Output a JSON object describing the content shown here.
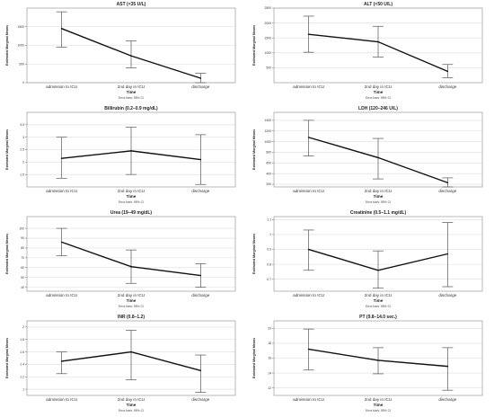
{
  "chart_data": [
    {
      "type": "line",
      "title": "AST (<35 U/L)",
      "xlabel": "Time",
      "ylabel": "Estimated Marginal Means",
      "x": [
        "admission to ICU",
        "2nd day in ICU",
        "discharge"
      ],
      "values": [
        1450,
        720,
        120
      ],
      "error_low": [
        950,
        400,
        0
      ],
      "error_high": [
        1900,
        1120,
        250
      ],
      "yticks": [
        0,
        500,
        1000,
        1500
      ],
      "ylim": [
        0,
        2000
      ],
      "error_note": "Error bars: 95% CI",
      "grid": true
    },
    {
      "type": "line",
      "title": "ALT (<50 U/L)",
      "xlabel": "Time",
      "ylabel": "Estimated Marginal Means",
      "x": [
        "admission to ICU",
        "2nd day in ICU",
        "discharge"
      ],
      "values": [
        1620,
        1370,
        380
      ],
      "error_low": [
        1020,
        860,
        170
      ],
      "error_high": [
        2230,
        1890,
        610
      ],
      "yticks": [
        500,
        1000,
        1500,
        2000,
        2500
      ],
      "ylim": [
        0,
        2500
      ],
      "error_note": "Error bars: 95% CI",
      "grid": true
    },
    {
      "type": "line",
      "title": "Billirubin (0.2–0.9 mg/dL)",
      "xlabel": "Time",
      "ylabel": "Estimated Marginal Means",
      "x": [
        "admission to ICU",
        "2nd day in ICU",
        "discharge"
      ],
      "values": [
        2.15,
        2.45,
        2.1
      ],
      "error_low": [
        1.35,
        1.5,
        1.1
      ],
      "error_high": [
        3.0,
        3.4,
        3.1
      ],
      "yticks": [
        1.5,
        2.0,
        2.5,
        3.0,
        3.5
      ],
      "ylim": [
        1.0,
        4.0
      ],
      "error_note": "Error bars: 95% CI",
      "grid": true
    },
    {
      "type": "line",
      "title": "LDH (120–246 U/L)",
      "xlabel": "Time",
      "ylabel": "Estimated Marginal Means",
      "x": [
        "admission to ICU",
        "2nd day in ICU",
        "discharge"
      ],
      "values": [
        1080,
        700,
        230
      ],
      "error_low": [
        730,
        300,
        150
      ],
      "error_high": [
        1400,
        1060,
        320
      ],
      "yticks": [
        200,
        400,
        600,
        800,
        1000,
        1200,
        1400
      ],
      "ylim": [
        150,
        1550
      ],
      "error_note": "Error bars: 95% CI",
      "grid": true
    },
    {
      "type": "line",
      "title": "Urea (19–49 mg/dL)",
      "xlabel": "Time",
      "ylabel": "Estimated Marginal Means",
      "x": [
        "admission to ICU",
        "2nd day in ICU",
        "discharge"
      ],
      "values": [
        86,
        61,
        52
      ],
      "error_low": [
        72,
        44,
        40
      ],
      "error_high": [
        100,
        78,
        64
      ],
      "yticks": [
        40,
        50,
        60,
        70,
        80,
        90,
        100
      ],
      "ylim": [
        36,
        112
      ],
      "error_note": "Error bars: 95% CI",
      "grid": true
    },
    {
      "type": "line",
      "title": "Creatinine (0.5–1.1 mg/dL)",
      "xlabel": "Time",
      "ylabel": "Estimated Marginal Means",
      "x": [
        "admission to ICU",
        "2nd day in ICU",
        "discharge"
      ],
      "values": [
        0.9,
        0.76,
        0.87
      ],
      "error_low": [
        0.76,
        0.64,
        0.65
      ],
      "error_high": [
        1.03,
        0.89,
        1.08
      ],
      "yticks": [
        0.7,
        0.8,
        0.9,
        1.0,
        1.1
      ],
      "ylim": [
        0.62,
        1.12
      ],
      "error_note": "Error bars: 95% CI",
      "grid": true
    },
    {
      "type": "line",
      "title": "INR (0.8–1.2)",
      "xlabel": "Time",
      "ylabel": "Estimated Marginal Means",
      "x": [
        "admission to ICU",
        "2nd day in ICU",
        "discharge"
      ],
      "values": [
        1.45,
        1.6,
        1.3
      ],
      "error_low": [
        1.25,
        1.15,
        0.95
      ],
      "error_high": [
        1.6,
        1.95,
        1.55
      ],
      "yticks": [
        1.0,
        1.2,
        1.4,
        1.6,
        1.8,
        2.0
      ],
      "ylim": [
        0.9,
        2.1
      ],
      "error_note": "Error bars: 95% CI",
      "grid": true
    },
    {
      "type": "line",
      "title": "PT (9.8–14.0 sec.)",
      "xlabel": "Time",
      "ylabel": "Estimated Marginal Means",
      "x": [
        "admission to ICU",
        "2nd day in ICU",
        "discharge"
      ],
      "values": [
        17.2,
        15.7,
        14.9
      ],
      "error_low": [
        14.4,
        13.9,
        11.7
      ],
      "error_high": [
        19.9,
        17.4,
        17.4
      ],
      "yticks": [
        12,
        14,
        16,
        18,
        20
      ],
      "ylim": [
        11,
        21
      ],
      "error_note": "Error bars: 95% CI",
      "grid": true
    }
  ]
}
